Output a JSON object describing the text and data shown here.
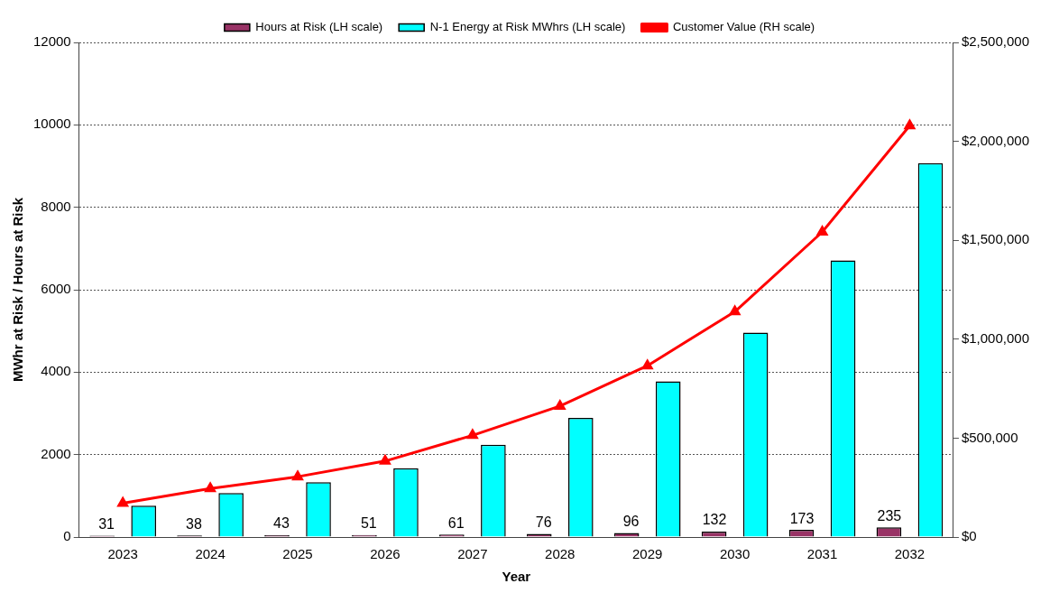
{
  "chart_data": {
    "type": "bar",
    "categories": [
      "2023",
      "2024",
      "2025",
      "2026",
      "2027",
      "2028",
      "2029",
      "2030",
      "2031",
      "2032"
    ],
    "xlabel": "Year",
    "ylabel": "MWhr at Risk / Hours at Risk",
    "ylim": [
      0,
      12000
    ],
    "yticks": [
      0,
      2000,
      4000,
      6000,
      8000,
      10000,
      12000
    ],
    "y2lim": [
      0,
      2500000
    ],
    "y2ticks": [
      {
        "value": 0,
        "label": "$0"
      },
      {
        "value": 500000,
        "label": "$500,000"
      },
      {
        "value": 1000000,
        "label": "$1,000,000"
      },
      {
        "value": 1500000,
        "label": "$1,500,000"
      },
      {
        "value": 2000000,
        "label": "$2,000,000"
      },
      {
        "value": 2500000,
        "label": "$2,500,000"
      }
    ],
    "grid": "y",
    "legend": "top",
    "marker": "triangle",
    "series": [
      {
        "name": "Hours at Risk (LH scale)",
        "color": "#993366",
        "values": [
          31,
          38,
          43,
          51,
          61,
          76,
          96,
          132,
          173,
          235
        ],
        "value_labels": [
          "31",
          "38",
          "43",
          "51",
          "61",
          "76",
          "96",
          "132",
          "173",
          "235"
        ]
      },
      {
        "name": "N-1 Energy at Risk MWhrs (LH scale)",
        "color": "#00ffff",
        "values": [
          760,
          1070,
          1330,
          1670,
          2240,
          2890,
          3780,
          4960,
          6710,
          9070
        ]
      },
      {
        "name": "Customer Value (RH scale)",
        "type": "line",
        "axis": "y2",
        "color": "#ff0000",
        "values": [
          171000,
          245000,
          305000,
          384000,
          514000,
          662000,
          866000,
          1139000,
          1542000,
          2079000
        ]
      }
    ]
  }
}
